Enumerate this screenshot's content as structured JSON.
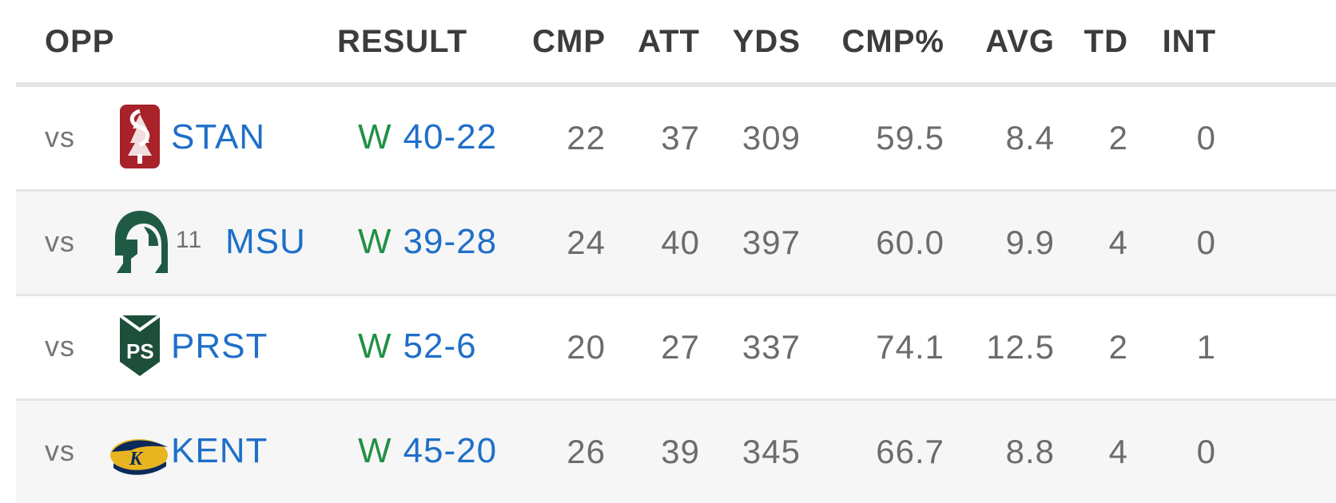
{
  "columns": {
    "opp": "OPP",
    "result": "RESULT",
    "cmp": "CMP",
    "att": "ATT",
    "yds": "YDS",
    "cmp_pct": "CMP%",
    "avg": "AVG",
    "td": "TD",
    "int": "INT"
  },
  "games": [
    {
      "vs": "vs",
      "logo_icon": "stanford-logo-icon",
      "rank": "",
      "team": "STAN",
      "outcome": "W",
      "score": "40-22",
      "cmp": "22",
      "att": "37",
      "yds": "309",
      "cmp_pct": "59.5",
      "avg": "8.4",
      "td": "2",
      "int": "0"
    },
    {
      "vs": "vs",
      "logo_icon": "michigan-state-logo-icon",
      "rank": "11",
      "team": "MSU",
      "outcome": "W",
      "score": "39-28",
      "cmp": "24",
      "att": "40",
      "yds": "397",
      "cmp_pct": "60.0",
      "avg": "9.9",
      "td": "4",
      "int": "0"
    },
    {
      "vs": "vs",
      "logo_icon": "portland-state-logo-icon",
      "rank": "",
      "team": "PRST",
      "outcome": "W",
      "score": "52-6",
      "cmp": "20",
      "att": "27",
      "yds": "337",
      "cmp_pct": "74.1",
      "avg": "12.5",
      "td": "2",
      "int": "1"
    },
    {
      "vs": "vs",
      "logo_icon": "kent-state-logo-icon",
      "rank": "",
      "team": "KENT",
      "outcome": "W",
      "score": "45-20",
      "cmp": "26",
      "att": "39",
      "yds": "345",
      "cmp_pct": "66.7",
      "avg": "8.8",
      "td": "4",
      "int": "0"
    }
  ],
  "colors": {
    "win": "#229046",
    "link": "#1f6fc9",
    "header_text": "#3c3c3c",
    "stat_text": "#6c6c6c",
    "alt_row": "#f6f6f6"
  }
}
